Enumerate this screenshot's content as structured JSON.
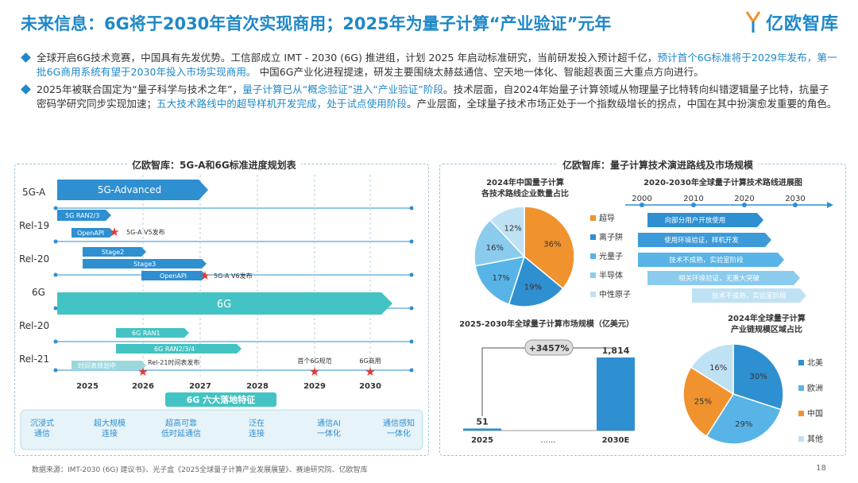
{
  "header": {
    "title": "未来信息：6G将于2030年首次实现商用；2025年为量子计算“产业验证”元年",
    "logo_text": "亿欧智库"
  },
  "bullets": [
    {
      "part1": "全球开启6G技术竞赛，中国具有先发优势。工信部成立 IMT - 2030 (6G) 推进组，计划 2025 年启动标准研究，当前研发投入预计超千亿，",
      "highlight": "预计首个6G标准将于2029年发布，第一批6G商用系统有望于2030年投入市场实现商用。",
      "part2": " 中国6G产业化进程提速，研发主要围绕太赫兹通信、空天地一体化、智能超表面三大重点方向进行。"
    },
    {
      "part1": "2025年被联合国定为“量子科学与技术之年”，",
      "highlight1": "量子计算已从“概念验证”进入“产业验证”阶段",
      "part2": "。技术层面，自2024年始量子计算领域从物理量子比特转向纠错逻辑量子比特，抗量子密码学研究同步实现加速；",
      "highlight2": "五大技术路线中的超导样机开发完成，处于试点使用阶段",
      "part3": "。产业层面，全球量子技术市场正处于一个指数级增长的拐点，中国在其中扮演愈发重要的角色。"
    }
  ],
  "left_panel": {
    "title": "亿欧智库：5G-A和6G标准进度规划表",
    "row_labels": [
      "5G-A",
      "Rel-19",
      "Rel-20",
      "6G",
      "Rel-20",
      "Rel-21"
    ],
    "bars": {
      "b5ga": "5G-Advanced",
      "ran23": "5G RAN2/3",
      "openapi1": "OpenAPI",
      "stage2": "Stage2",
      "stage3": "Stage3",
      "openapi2": "OpenAPI",
      "b6g": "6G",
      "ran1": "6G RAN1",
      "ran234": "6G RAN2/3/4",
      "timetable": "时间表规划中"
    },
    "milestones": {
      "v5": "5G-A V5发布",
      "v6": "5G-A V6发布",
      "rel21": "Rel-21时间表发布",
      "first6g": "首个6G规范",
      "g6comm": "6G商用"
    },
    "years": [
      "2025",
      "2026",
      "2027",
      "2028",
      "2029",
      "2030"
    ],
    "features_title": "6G 六大落地特征",
    "features": [
      "沉浸式\n通信",
      "超大规模\n连接",
      "超高可靠\n低时延通信",
      "泛在\n连接",
      "通信AI\n一体化",
      "通信感知\n一体化"
    ]
  },
  "right_panel": {
    "title": "亿欧智库：量子计算技术演进路线及市场规模",
    "pie1_title": "2024年中国量子计算\n各技术路线企业数量占比",
    "roadmap_title": "2020-2030年全球量子计算技术路线进展图",
    "roadmap_years": [
      "2000",
      "2010",
      "2020",
      "2030"
    ],
    "routes": [
      "超导",
      "离子阱",
      "光量子",
      "半导体",
      "中性原子"
    ],
    "route_texts": [
      "向部分用户开放使用",
      "使用环境验证，样机开发",
      "技术不成熟，实验室阶段",
      "相关环境验证，无重大突破",
      "技术不成熟，实验室阶段"
    ],
    "market_title": "2025-2030年全球量子计算市场规模（亿美元）",
    "market_growth": "+3457%",
    "market_dots": "......",
    "pie2_title": "2024年全球量子计算\n产业链规模区域占比",
    "regions": [
      "北美",
      "欧洲",
      "中国",
      "其他"
    ]
  },
  "chart_data": [
    {
      "type": "pie",
      "title": "2024年中国量子计算各技术路线企业数量占比",
      "labels": [
        "超导",
        "离子阱",
        "光量子",
        "半导体",
        "中性原子"
      ],
      "values": [
        36,
        19,
        17,
        16,
        12
      ],
      "colors": [
        "#f0922e",
        "#2e8fd1",
        "#58b4e6",
        "#8bcbed",
        "#bfe1f4"
      ]
    },
    {
      "type": "bar",
      "title": "2025-2030年全球量子计算市场规模（亿美元）",
      "categories": [
        "2025",
        "2030E"
      ],
      "values": [
        51,
        1814
      ],
      "growth": "+3457%"
    },
    {
      "type": "pie",
      "title": "2024年全球量子计算产业链规模区域占比",
      "labels": [
        "北美",
        "欧洲",
        "中国",
        "其他"
      ],
      "values": [
        30,
        29,
        25,
        16
      ],
      "colors": [
        "#2e8fd1",
        "#58b4e6",
        "#f0922e",
        "#bfe1f4"
      ]
    }
  ],
  "footer": {
    "source": "数据来源：IMT-2030 (6G) 建议书》、光子盒《2025全球量子计算产业发展展望》、赛迪研究院、亿欧智库",
    "page": "18"
  }
}
